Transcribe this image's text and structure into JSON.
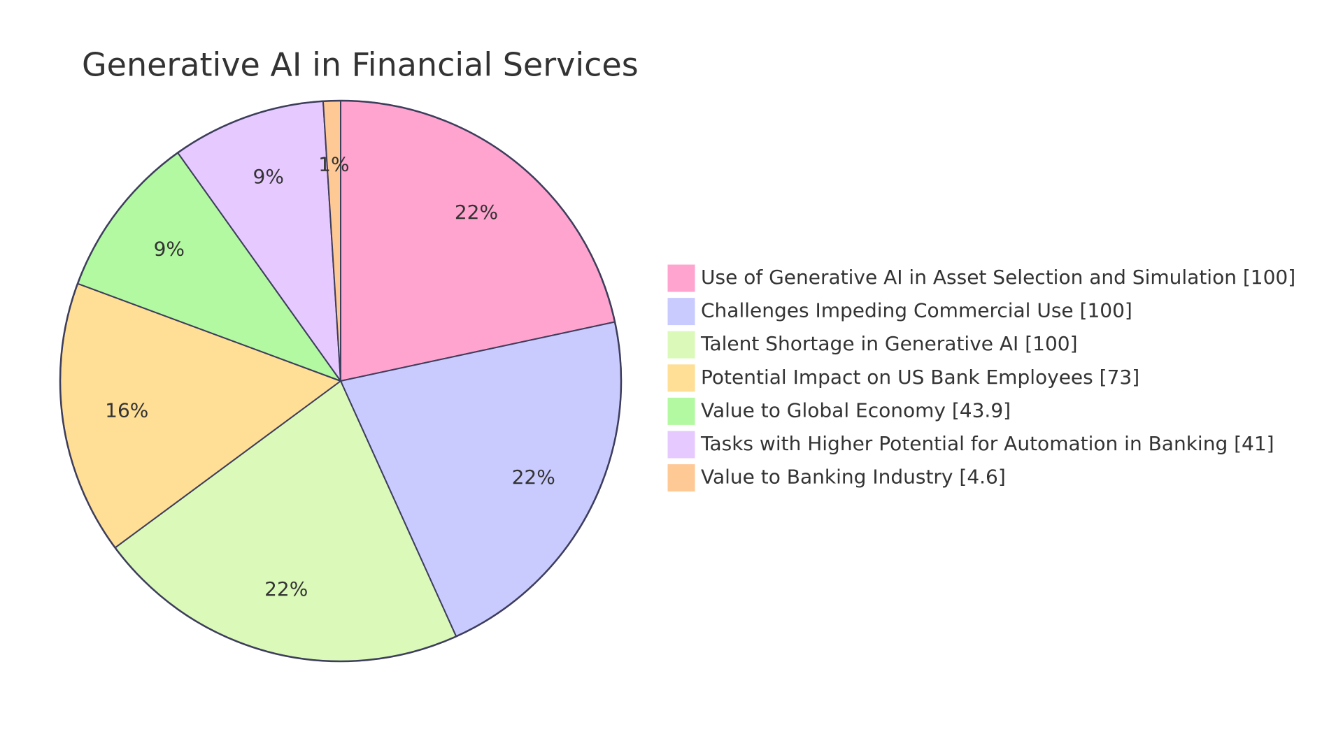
{
  "chart_data": {
    "type": "pie",
    "title": "Generative AI in Financial Services",
    "categories": [
      "Use of Generative AI in Asset Selection and Simulation [100]",
      "Challenges Impeding Commercial Use [100]",
      "Talent Shortage in Generative AI [100]",
      "Potential Impact on US Bank Employees [73]",
      "Value to Global Economy [43.9]",
      "Tasks with Higher Potential for Automation in Banking [41]",
      "Value to Banking Industry [4.6]"
    ],
    "values": [
      100,
      100,
      100,
      73,
      43.9,
      41,
      4.6
    ],
    "value_labels": [
      "22%",
      "22%",
      "22%",
      "16%",
      "9%",
      "9%",
      "1%"
    ],
    "colors": [
      "#FFA3CF",
      "#C9CBFF",
      "#DBFAB9",
      "#FFDE95",
      "#B3F9A1",
      "#E6CAFF",
      "#FFC995"
    ],
    "legend": "right"
  }
}
